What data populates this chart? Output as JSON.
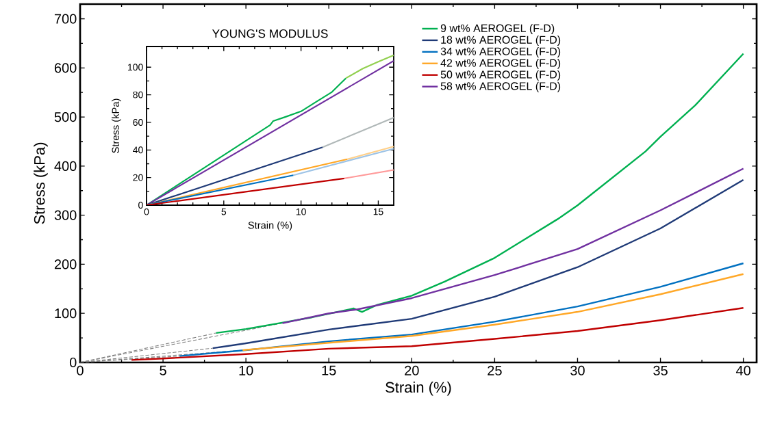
{
  "chart_data": [
    {
      "type": "line",
      "xlabel": "Strain (%)",
      "ylabel": "Stress (kPa)",
      "xlim": [
        0,
        40.8
      ],
      "ylim": [
        0,
        730
      ],
      "xticks": [
        0,
        5,
        10,
        15,
        20,
        25,
        30,
        35,
        40
      ],
      "yticks": [
        0,
        100,
        200,
        300,
        400,
        500,
        600,
        700
      ],
      "legend": "top right",
      "series": [
        {
          "color": "#808080",
          "line_style": "dashed",
          "x": [
            0,
            8.2
          ],
          "values": [
            0,
            60
          ]
        },
        {
          "color": "#808080",
          "line_style": "dashed",
          "x": [
            0,
            12.2
          ],
          "values": [
            0,
            80
          ]
        },
        {
          "color": "#808080",
          "line_style": "dashed",
          "x": [
            0,
            8.0
          ],
          "values": [
            0,
            29
          ]
        },
        {
          "color": "#808080",
          "line_style": "dashed",
          "x": [
            0,
            9.8
          ],
          "values": [
            0,
            25
          ]
        },
        {
          "color": "#808080",
          "line_style": "dashed",
          "x": [
            0,
            6.0
          ],
          "values": [
            0,
            13
          ]
        },
        {
          "name": "9 wt% AEROGEL (F-D)",
          "color": "#00b050",
          "x": [
            8.2,
            10,
            12,
            14,
            16.5,
            17,
            17.9,
            20,
            22,
            25,
            28.8,
            30,
            34.1,
            35,
            37.1,
            40
          ],
          "values": [
            60,
            68,
            80,
            92,
            110,
            103,
            117,
            136,
            165,
            213,
            292,
            320,
            430,
            460,
            524,
            629
          ]
        },
        {
          "name": "18 wt% AEROGEL (F-D)",
          "color": "#1f3a77",
          "x": [
            8.0,
            10,
            15,
            20,
            25,
            30,
            35,
            40
          ],
          "values": [
            29,
            39,
            67,
            89,
            134,
            194,
            273,
            372
          ]
        },
        {
          "name": "34 wt% AEROGEL (F-D)",
          "color": "#0070c0",
          "x": [
            6.0,
            10,
            15,
            20,
            25,
            30,
            35,
            40
          ],
          "values": [
            13,
            25,
            43,
            57,
            83,
            114,
            154,
            202
          ]
        },
        {
          "name": "42 wt% AEROGEL (F-D)",
          "color": "#ffa726",
          "x": [
            9.8,
            15,
            20,
            25,
            30,
            35,
            40
          ],
          "values": [
            25,
            40,
            54,
            77,
            103,
            139,
            180
          ]
        },
        {
          "name": "50 wt% AEROGEL (F-D)",
          "color": "#c00000",
          "x": [
            3.1,
            5,
            10,
            15,
            20,
            25,
            30,
            35,
            40
          ],
          "values": [
            5,
            8,
            17,
            28,
            33,
            48,
            64,
            86,
            111
          ]
        },
        {
          "name": "58 wt% AEROGEL (F-D)",
          "color": "#7030a0",
          "x": [
            12.2,
            15,
            16.7,
            18,
            20,
            25,
            30,
            35,
            40
          ],
          "values": [
            80,
            100,
            108,
            117,
            131,
            178,
            231,
            310,
            395
          ]
        }
      ]
    },
    {
      "type": "line",
      "title": "YOUNG'S MODULUS",
      "xlabel": "Strain (%)",
      "ylabel": "Stress (kPa)",
      "xlim": [
        0,
        16
      ],
      "ylim": [
        0,
        115
      ],
      "xticks": [
        0,
        5,
        10,
        15
      ],
      "yticks": [
        0,
        20,
        40,
        60,
        80,
        100
      ],
      "series": [
        {
          "color": "#92d050",
          "x": [
            12.9,
            14,
            15,
            16
          ],
          "values": [
            92,
            99,
            104,
            108.7
          ]
        },
        {
          "color": "#b0b8b8",
          "x": [
            11.4,
            16
          ],
          "values": [
            42,
            63.4
          ]
        },
        {
          "color": "#ffd08a",
          "x": [
            13.0,
            16
          ],
          "values": [
            33.3,
            42.5
          ]
        },
        {
          "color": "#9dc3e6",
          "x": [
            9.5,
            16
          ],
          "values": [
            21.7,
            40.9
          ]
        },
        {
          "color": "#ff9999",
          "x": [
            12.8,
            16
          ],
          "values": [
            19.4,
            25.5
          ]
        },
        {
          "color": "#00b050",
          "x": [
            0,
            8.0,
            8.2,
            9,
            10,
            11,
            12,
            12.9
          ],
          "values": [
            0,
            58,
            61,
            64,
            68,
            75,
            82,
            92
          ]
        },
        {
          "color": "#7030a0",
          "x": [
            0,
            16
          ],
          "values": [
            0,
            104.6
          ]
        },
        {
          "color": "#1f3a77",
          "x": [
            0,
            11.4
          ],
          "values": [
            0,
            42
          ]
        },
        {
          "color": "#ffa726",
          "x": [
            0,
            13.0
          ],
          "values": [
            0,
            33.3
          ]
        },
        {
          "color": "#0070c0",
          "x": [
            0,
            9.5
          ],
          "values": [
            0,
            21.7
          ]
        },
        {
          "color": "#c00000",
          "x": [
            0,
            12.8
          ],
          "values": [
            0,
            19.4
          ]
        }
      ]
    }
  ]
}
